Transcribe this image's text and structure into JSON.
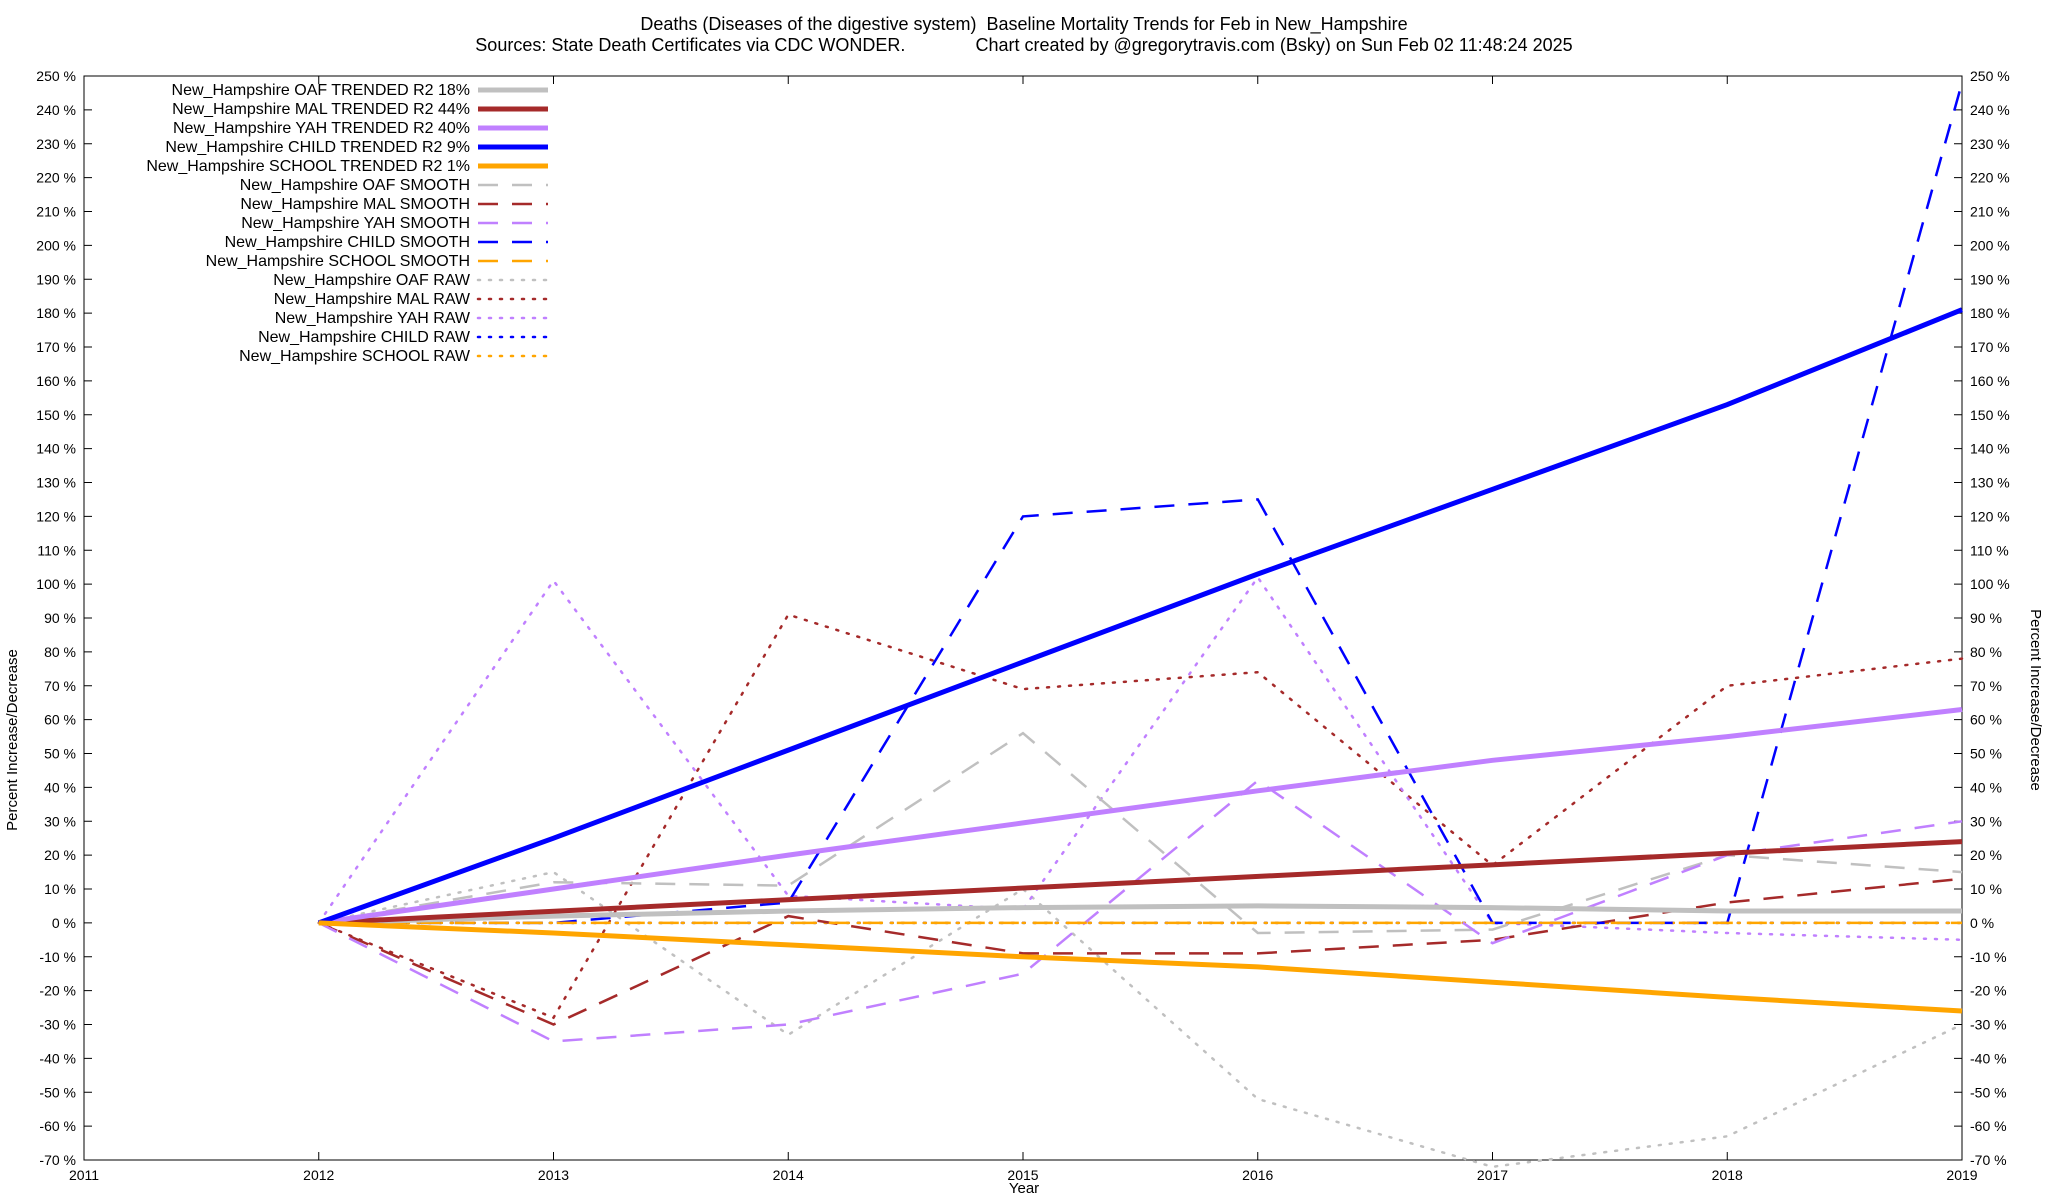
{
  "chart_data": {
    "type": "line",
    "title": "Deaths (Diseases of the digestive system)  Baseline Mortality Trends for Feb in New_Hampshire",
    "subtitle": "Sources: State Death Certificates via CDC WONDER.              Chart created by @gregorytravis.com (Bsky) on Sun Feb 02 11:48:24 2025",
    "xlabel": "Year",
    "ylabel": "Percent Increase/Decrease",
    "xlim": [
      2011,
      2019
    ],
    "ylim": [
      -70,
      250
    ],
    "x_ticks": [
      "2011",
      "2012",
      "2013",
      "2014",
      "2015",
      "2016",
      "2017",
      "2018",
      "2019"
    ],
    "y_ticks": [
      "250 %",
      "240 %",
      "230 %",
      "220 %",
      "210 %",
      "200 %",
      "190 %",
      "180 %",
      "170 %",
      "160 %",
      "150 %",
      "140 %",
      "130 %",
      "120 %",
      "110 %",
      "100 %",
      "90 %",
      "80 %",
      "70 %",
      "60 %",
      "50 %",
      "40 %",
      "30 %",
      "20 %",
      "10 %",
      "0 %",
      "-10 %",
      "-20 %",
      "-30 %",
      "-40 %",
      "-50 %",
      "-60 %",
      "-70 %"
    ],
    "legend_position": "top-left",
    "grid": false,
    "series": [
      {
        "name": "New_Hampshire OAF TRENDED R2  18%",
        "style": "trend",
        "color": "#c0c0c0",
        "x": [
          2012,
          2013,
          2014,
          2015,
          2016,
          2017,
          2018,
          2019
        ],
        "values": [
          0,
          2,
          3.5,
          4.5,
          5,
          4.5,
          3.5,
          3.5
        ]
      },
      {
        "name": "New_Hampshire MAL TRENDED R2  44%",
        "style": "trend",
        "color": "#a52a2a",
        "x": [
          2012,
          2019
        ],
        "values": [
          0,
          24
        ]
      },
      {
        "name": "New_Hampshire YAH TRENDED R2  40%",
        "style": "trend",
        "color": "#c080ff",
        "x": [
          2012,
          2013,
          2014,
          2015,
          2016,
          2017,
          2018,
          2019
        ],
        "values": [
          0,
          10,
          20,
          29.5,
          39,
          48,
          55,
          63
        ]
      },
      {
        "name": "New_Hampshire CHILD TRENDED R2  9%",
        "style": "trend",
        "color": "#0000ff",
        "x": [
          2012,
          2013,
          2014,
          2015,
          2016,
          2017,
          2018,
          2019
        ],
        "values": [
          0,
          25,
          51,
          77,
          103,
          128,
          153,
          181
        ]
      },
      {
        "name": "New_Hampshire SCHOOL TRENDED R2  1%",
        "style": "trend",
        "color": "#ffa500",
        "x": [
          2012,
          2013,
          2014,
          2015,
          2016,
          2017,
          2018,
          2019
        ],
        "values": [
          0,
          -3,
          -6.5,
          -10,
          -13,
          -17.5,
          -22,
          -26
        ]
      },
      {
        "name": "New_Hampshire OAF SMOOTH",
        "style": "smooth",
        "color": "#c0c0c0",
        "x": [
          2012,
          2013,
          2014,
          2015,
          2016,
          2017,
          2018,
          2019
        ],
        "values": [
          0,
          12,
          11,
          56,
          -3,
          -2,
          20,
          15
        ]
      },
      {
        "name": "New_Hampshire MAL SMOOTH",
        "style": "smooth",
        "color": "#a52a2a",
        "x": [
          2012,
          2013,
          2014,
          2015,
          2016,
          2017,
          2018,
          2019
        ],
        "values": [
          0,
          -30,
          2,
          -9,
          -9,
          -5,
          6,
          13
        ]
      },
      {
        "name": "New_Hampshire YAH SMOOTH",
        "style": "smooth",
        "color": "#c080ff",
        "x": [
          2012,
          2013,
          2014,
          2015,
          2016,
          2017,
          2018,
          2019
        ],
        "values": [
          0,
          -35,
          -30,
          -15,
          42,
          -6,
          20,
          30
        ]
      },
      {
        "name": "New_Hampshire CHILD SMOOTH",
        "style": "smooth",
        "color": "#0000ff",
        "x": [
          2012,
          2013,
          2014,
          2015,
          2016,
          2017,
          2018,
          2019
        ],
        "values": [
          0,
          0,
          6,
          120,
          125,
          0,
          0,
          248
        ]
      },
      {
        "name": "New_Hampshire SCHOOL SMOOTH",
        "style": "smooth",
        "color": "#ffa500",
        "x": [
          2012,
          2013,
          2014,
          2015,
          2016,
          2017,
          2018,
          2019
        ],
        "values": [
          0,
          0,
          0,
          0,
          0,
          0,
          0,
          0
        ]
      },
      {
        "name": "New_Hampshire OAF RAW",
        "style": "raw",
        "color": "#c0c0c0",
        "x": [
          2012,
          2013,
          2014,
          2015,
          2016,
          2017,
          2018,
          2019
        ],
        "values": [
          0,
          15,
          -33,
          10,
          -52,
          -72,
          -63,
          -30
        ]
      },
      {
        "name": "New_Hampshire MAL RAW",
        "style": "raw",
        "color": "#a52a2a",
        "x": [
          2012,
          2013,
          2014,
          2015,
          2016,
          2017,
          2018,
          2019
        ],
        "values": [
          0,
          -28,
          91,
          69,
          74,
          17,
          70,
          78
        ]
      },
      {
        "name": "New_Hampshire YAH RAW",
        "style": "raw",
        "color": "#c080ff",
        "x": [
          2012,
          2013,
          2014,
          2015,
          2016,
          2017,
          2018,
          2019
        ],
        "values": [
          0,
          101,
          8,
          4,
          102,
          0,
          -3,
          -5
        ]
      },
      {
        "name": "New_Hampshire CHILD RAW",
        "style": "raw",
        "color": "#0000ff",
        "x": [
          2012,
          2013,
          2014,
          2015,
          2016,
          2017,
          2018,
          2019
        ],
        "values": [
          0,
          0,
          0,
          0,
          0,
          0,
          0,
          0
        ]
      },
      {
        "name": "New_Hampshire SCHOOL RAW",
        "style": "raw",
        "color": "#ffa500",
        "x": [
          2012,
          2013,
          2014,
          2015,
          2016,
          2017,
          2018,
          2019
        ],
        "values": [
          0,
          0,
          0,
          0,
          0,
          0,
          0,
          0
        ]
      }
    ]
  }
}
